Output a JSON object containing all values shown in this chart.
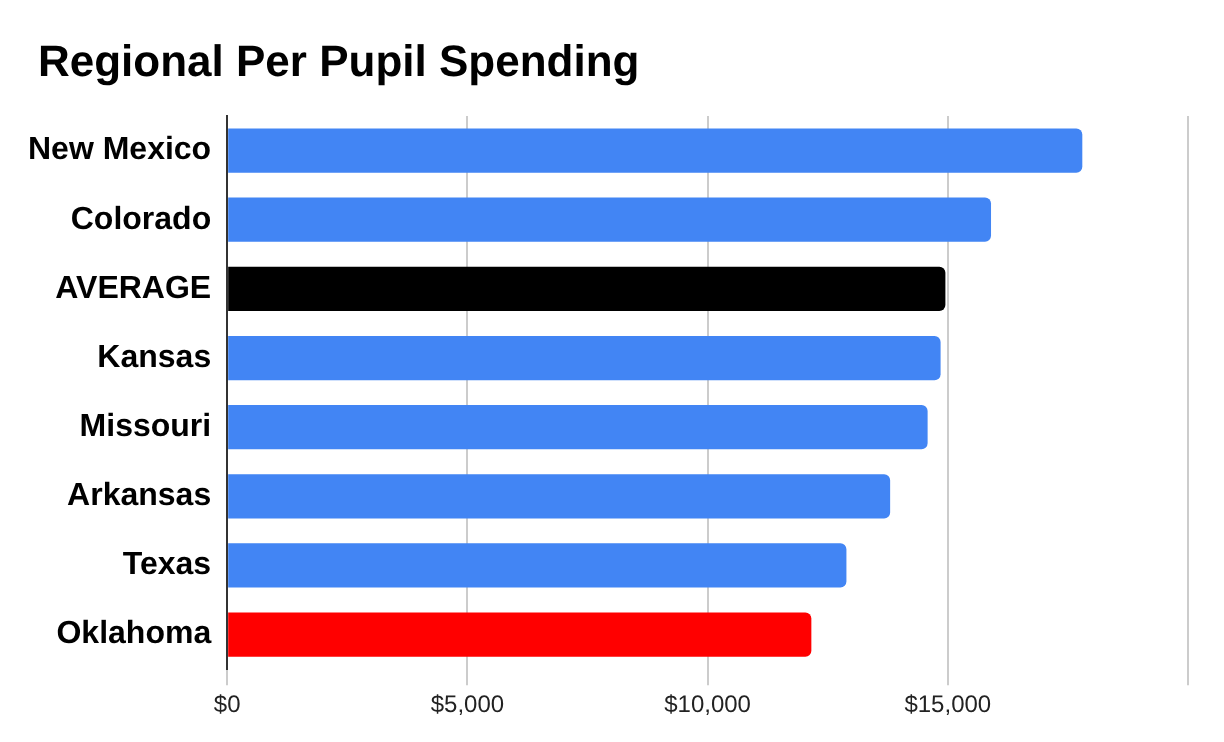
{
  "chart_data": {
    "type": "bar",
    "orientation": "horizontal",
    "title": "Regional Per Pupil Spending",
    "categories": [
      "New Mexico",
      "Colorado",
      "AVERAGE",
      "Kansas",
      "Missouri",
      "Arkansas",
      "Texas",
      "Oklahoma"
    ],
    "values": [
      17800,
      15900,
      14950,
      14850,
      14580,
      13800,
      12890,
      12160
    ],
    "colors": [
      "#4285f4",
      "#4285f4",
      "#000000",
      "#4285f4",
      "#4285f4",
      "#4285f4",
      "#4285f4",
      "#ff0000"
    ],
    "xlim": [
      0,
      20000
    ],
    "xticks": [
      {
        "value": 0,
        "label": "$0"
      },
      {
        "value": 5000,
        "label": "$5,000"
      },
      {
        "value": 10000,
        "label": "$10,000"
      },
      {
        "value": 15000,
        "label": "$15,000"
      },
      {
        "value": 20000,
        "label": null
      }
    ],
    "grid": "x",
    "legend": false
  }
}
